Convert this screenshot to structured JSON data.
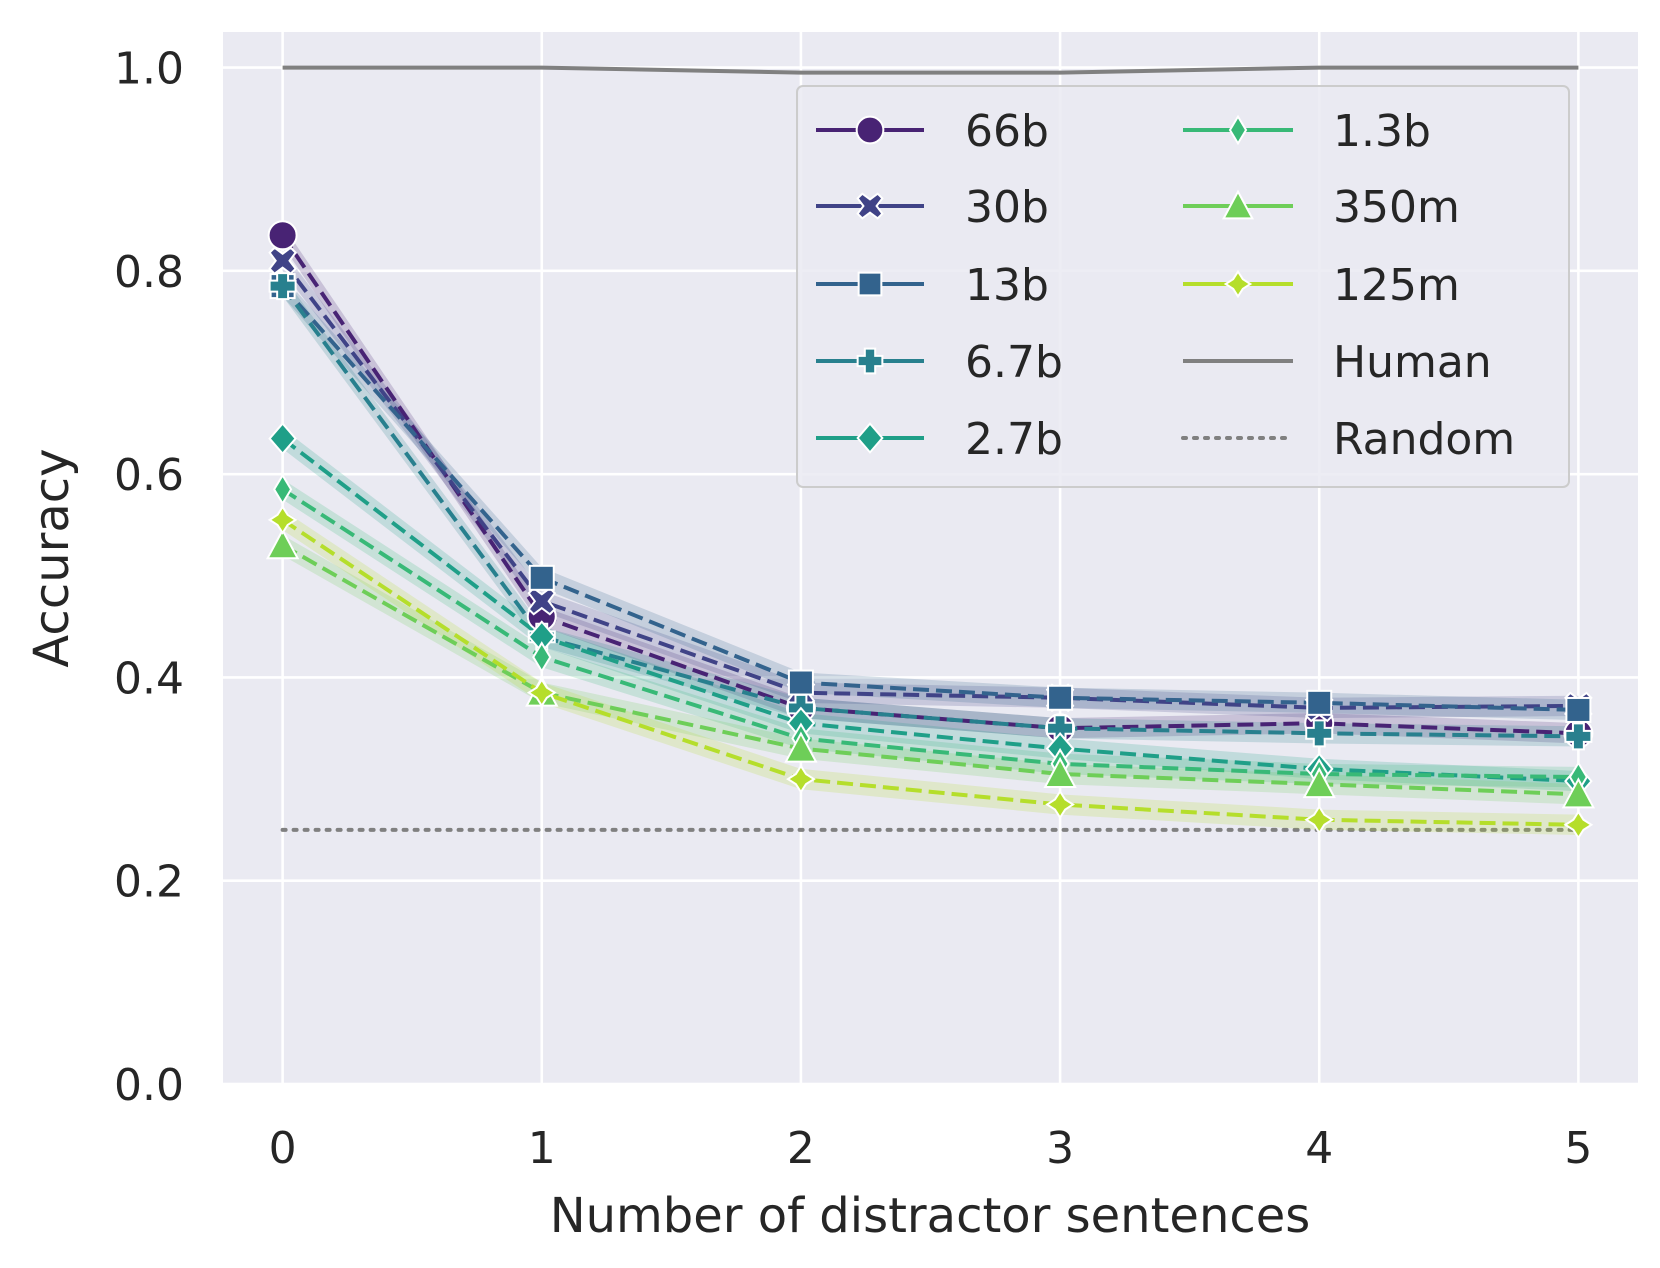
{
  "chart_data": {
    "type": "line",
    "title": "",
    "xlabel": "Number of distractor sentences",
    "ylabel": "Accuracy",
    "x": [
      0,
      1,
      2,
      3,
      4,
      5
    ],
    "xlim": [
      -0.23,
      5.23
    ],
    "ylim": [
      0.0,
      1.035
    ],
    "x_ticks": [
      "0",
      "1",
      "2",
      "3",
      "4",
      "5"
    ],
    "y_ticks": [
      "0.0",
      "0.2",
      "0.4",
      "0.6",
      "0.8",
      "1.0"
    ],
    "grid": true,
    "legend_placement": "top-right",
    "series": [
      {
        "name": "66b",
        "color": "#482374",
        "marker": "circle",
        "values": [
          0.835,
          0.46,
          0.37,
          0.35,
          0.355,
          0.345
        ]
      },
      {
        "name": "30b",
        "color": "#404387",
        "marker": "x",
        "values": [
          0.81,
          0.475,
          0.385,
          0.38,
          0.37,
          0.372
        ]
      },
      {
        "name": "13b",
        "color": "#33638d",
        "marker": "square",
        "values": [
          0.785,
          0.498,
          0.395,
          0.38,
          0.375,
          0.368
        ]
      },
      {
        "name": "6.7b",
        "color": "#28808e",
        "marker": "plus",
        "values": [
          0.785,
          0.44,
          0.37,
          0.35,
          0.345,
          0.342
        ]
      },
      {
        "name": "2.7b",
        "color": "#1f9f88",
        "marker": "diamond",
        "values": [
          0.635,
          0.44,
          0.355,
          0.33,
          0.31,
          0.298
        ]
      },
      {
        "name": "1.3b",
        "color": "#38b977",
        "marker": "thin_diamond",
        "values": [
          0.585,
          0.42,
          0.34,
          0.315,
          0.305,
          0.302
        ]
      },
      {
        "name": "350m",
        "color": "#6ece58",
        "marker": "triangle",
        "values": [
          0.53,
          0.385,
          0.33,
          0.305,
          0.295,
          0.285
        ]
      },
      {
        "name": "125m",
        "color": "#b5de2b",
        "marker": "star",
        "values": [
          0.555,
          0.385,
          0.3,
          0.275,
          0.26,
          0.255
        ]
      }
    ],
    "reference_lines": [
      {
        "name": "Human",
        "color": "#808080",
        "style": "solid",
        "values": [
          1.0,
          1.0,
          0.995,
          0.995,
          1.0,
          1.0
        ]
      },
      {
        "name": "Random",
        "color": "#808080",
        "style": "dotted",
        "values": [
          0.25,
          0.25,
          0.25,
          0.25,
          0.25,
          0.25
        ]
      }
    ],
    "legend_order": [
      "66b",
      "30b",
      "13b",
      "6.7b",
      "2.7b",
      "1.3b",
      "350m",
      "125m",
      "Human",
      "Random"
    ]
  }
}
